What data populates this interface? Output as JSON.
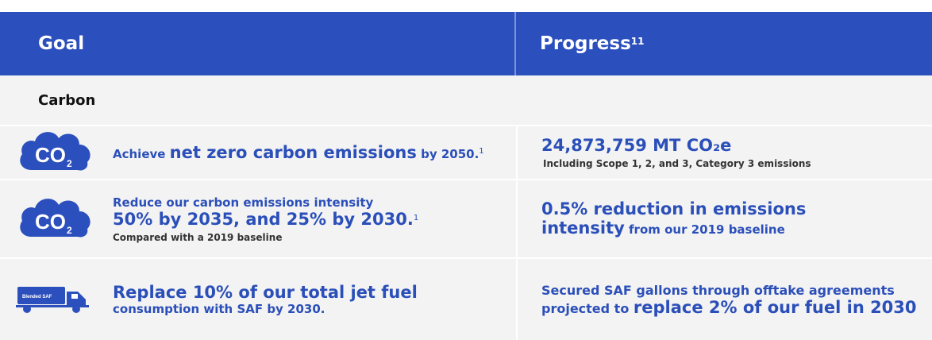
{
  "header": {
    "goal": "Goal",
    "progress": "Progress",
    "progress_sup": "11"
  },
  "section": {
    "title": "Carbon"
  },
  "rows": [
    {
      "icon": "co2-cloud-icon",
      "goal_pre": "Achieve ",
      "goal_bold": "net zero carbon emissions",
      "goal_post": " by 2050.",
      "goal_sup": "1",
      "progress_big": "24,873,759 MT CO₂e",
      "progress_note": "Including Scope 1, 2, and 3, Category 3 emissions"
    },
    {
      "icon": "co2-cloud-icon",
      "goal_line1": "Reduce our carbon emissions intensity",
      "goal_line2": "50% by 2035, and 25% by 2030.",
      "goal_sup": "1",
      "goal_note": "Compared with a 2019 baseline",
      "progress_big_line1": "0.5% reduction in emissions",
      "progress_big_line2": "intensity",
      "progress_post": " from our 2019 baseline"
    },
    {
      "icon": "fuel-truck-icon",
      "truck_label": "Blended SAF",
      "goal_bold": "Replace 10% of our total jet fuel",
      "goal_line2": "consumption with SAF by 2030.",
      "progress_line1": "Secured SAF gallons through offtake agreements",
      "progress_pre": "projected to ",
      "progress_bold": "replace 2% of our fuel in 2030"
    }
  ],
  "colors": {
    "brand_blue": "#2b4fbd",
    "row_bg": "#f3f3f3",
    "note_gray": "#333333"
  }
}
